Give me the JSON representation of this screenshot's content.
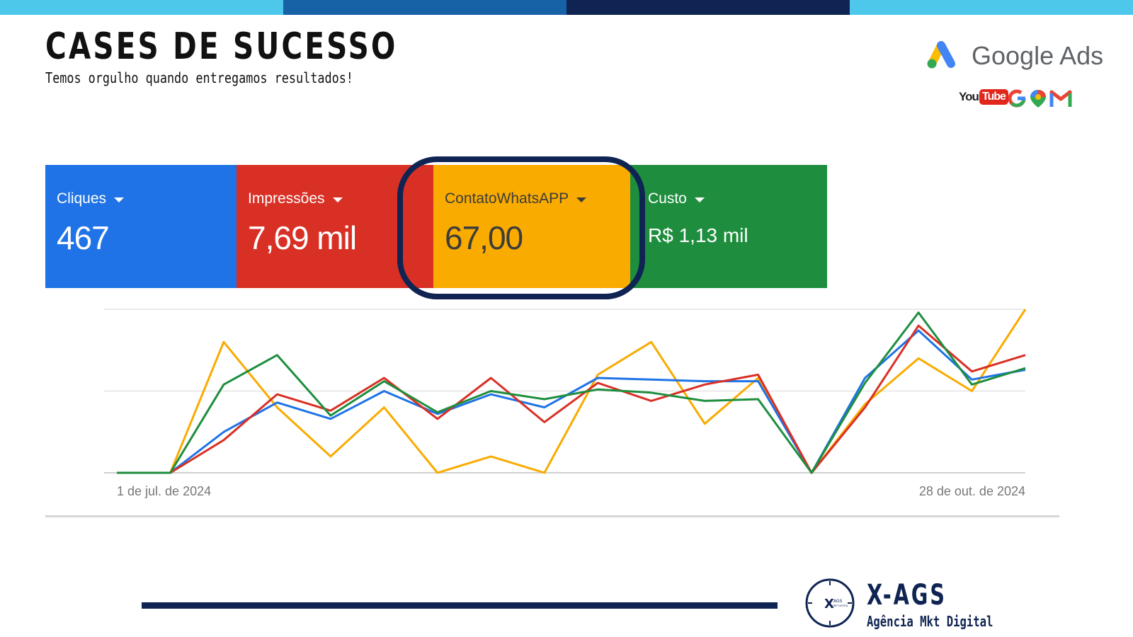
{
  "header": {
    "title": "CASES DE SUCESSO",
    "subtitle": "Temos orgulho quando entregamos resultados!"
  },
  "colors": {
    "bar_segments": [
      "#4ec8ea",
      "#1762a7",
      "#0f2452",
      "#4ec8ea"
    ],
    "clicks": "#1f73e6",
    "impressions": "#d93025",
    "whatsapp": "#f9ab00",
    "cost": "#1e8e3e",
    "highlight": "#0f2452"
  },
  "logos": {
    "google_ads": "Google Ads",
    "youtube_you": "You",
    "youtube_tube": "Tube"
  },
  "metrics": [
    {
      "label": "Cliques",
      "value": "467"
    },
    {
      "label": "Impressões",
      "value": "7,69 mil"
    },
    {
      "label": "ContatoWhatsAPP",
      "value": "67,00"
    },
    {
      "label": "Custo",
      "value": "R$ 1,13 mil"
    }
  ],
  "chart_data": {
    "type": "line",
    "title": "",
    "xlabel": "",
    "ylabel": "",
    "x_start_label": "1 de jul. de 2024",
    "x_end_label": "28 de out. de 2024",
    "ylim": [
      0,
      100
    ],
    "grid": true,
    "legend": "metric tiles above chart",
    "series": [
      {
        "name": "Cliques",
        "values": [
          0,
          0,
          25,
          43,
          33,
          50,
          36,
          48,
          40,
          58,
          57,
          56,
          56,
          0,
          58,
          87,
          57,
          63
        ]
      },
      {
        "name": "Impressões",
        "values": [
          0,
          0,
          20,
          48,
          38,
          58,
          33,
          58,
          31,
          55,
          44,
          54,
          60,
          0,
          40,
          90,
          62,
          72
        ]
      },
      {
        "name": "ContatoWhatsAPP",
        "values": [
          0,
          0,
          80,
          40,
          10,
          40,
          0,
          10,
          0,
          60,
          80,
          30,
          58,
          0,
          42,
          70,
          50,
          100
        ]
      },
      {
        "name": "Custo",
        "values": [
          0,
          0,
          54,
          72,
          35,
          56,
          37,
          50,
          45,
          51,
          49,
          44,
          45,
          0,
          55,
          98,
          54,
          64
        ]
      }
    ]
  },
  "brand": {
    "name": "X-AGS",
    "tagline": "Agência Mkt Digital",
    "badge_x": "X",
    "badge_small": "AGS",
    "badge_tiny": "MKT DIGITAL"
  }
}
